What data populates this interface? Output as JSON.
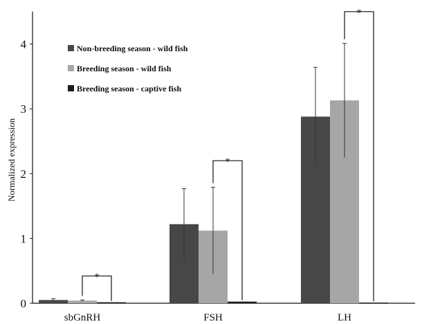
{
  "chart_data": {
    "type": "bar",
    "title": "",
    "xlabel": "",
    "ylabel": "Normalized expression",
    "ylim": [
      0,
      4.5
    ],
    "yticks": [
      0,
      1,
      2,
      3,
      4
    ],
    "grid": false,
    "legend_position": "top-left",
    "categories": [
      "sbGnRH",
      "FSH",
      "LH"
    ],
    "series": [
      {
        "name": "Non-breeding season - wild fish",
        "color": "#474747",
        "values": [
          0.05,
          1.22,
          2.88
        ],
        "errors": [
          0.02,
          0.55,
          0.76
        ]
      },
      {
        "name": "Breeding season - wild fish",
        "color": "#a6a6a6",
        "values": [
          0.04,
          1.12,
          3.13
        ],
        "errors": [
          0.01,
          0.67,
          0.88
        ]
      },
      {
        "name": "Breeding season - captive fish",
        "color": "#1a1a1a",
        "values": [
          0.015,
          0.025,
          0.01
        ],
        "errors": [
          0,
          0,
          0
        ]
      }
    ],
    "significance": [
      {
        "category": "sbGnRH",
        "from_series": 1,
        "to_series": 2,
        "y": 0.42,
        "label": "*"
      },
      {
        "category": "FSH",
        "from_series": 1,
        "to_series": 2,
        "y": 2.2,
        "label": "*"
      },
      {
        "category": "LH",
        "from_series": 1,
        "to_series": 2,
        "y": 4.5,
        "label": "*"
      }
    ]
  }
}
